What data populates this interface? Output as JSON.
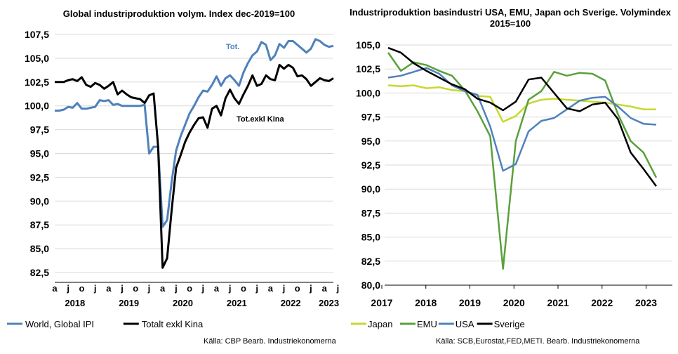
{
  "chart_data": [
    {
      "type": "line",
      "title": "Global industriproduktion volym. Index dec-2019=100",
      "ylim": [
        82.5,
        107.5
      ],
      "yticks": [
        "82,5",
        "85,0",
        "87,5",
        "90,0",
        "92,5",
        "95,0",
        "97,5",
        "100,0",
        "102,5",
        "105,0",
        "107,5"
      ],
      "month_labels": [
        "a",
        "j",
        "o",
        "j",
        "a",
        "j",
        "o",
        "j",
        "a",
        "j",
        "o",
        "j",
        "a",
        "j",
        "o",
        "j",
        "a",
        "j",
        "o",
        "j",
        "a",
        "j"
      ],
      "year_labels": [
        "2018",
        "2019",
        "2020",
        "2021",
        "2022",
        "2023"
      ],
      "grid": true,
      "legend_position": "bottom",
      "annotations": [
        "Tot.",
        "Tot.exkl Kina"
      ],
      "series": [
        {
          "name": "World, Global IPI",
          "color": "#4f81bd",
          "values": [
            99.5,
            99.5,
            99.6,
            99.9,
            99.8,
            100.3,
            99.7,
            99.7,
            99.8,
            99.9,
            100.6,
            100.5,
            100.6,
            100.1,
            100.2,
            100.0,
            100.0,
            100.0,
            100.0,
            100.0,
            100.1,
            95.0,
            95.7,
            95.7,
            87.3,
            88.0,
            92.0,
            95.3,
            96.8,
            98.0,
            99.2,
            100.0,
            100.9,
            101.6,
            101.5,
            102.2,
            103.1,
            102.1,
            102.9,
            103.2,
            102.7,
            102.1,
            103.5,
            104.5,
            105.3,
            105.7,
            106.7,
            106.4,
            104.8,
            105.3,
            106.5,
            106.1,
            106.8,
            106.8,
            106.4,
            106.0,
            105.6,
            106.0,
            107.0,
            106.8,
            106.4,
            106.2,
            106.3
          ]
        },
        {
          "name": "Totalt exkl Kina",
          "color": "#000000",
          "values": [
            102.5,
            102.5,
            102.5,
            102.7,
            102.8,
            102.6,
            103.0,
            102.2,
            102.0,
            102.4,
            102.2,
            101.8,
            102.1,
            102.5,
            101.2,
            101.6,
            101.2,
            100.9,
            100.8,
            100.7,
            100.3,
            101.1,
            101.3,
            95.7,
            83.0,
            84.0,
            89.0,
            93.5,
            94.8,
            96.2,
            97.2,
            98.0,
            98.7,
            98.8,
            97.7,
            99.7,
            100.0,
            99.0,
            100.8,
            101.7,
            100.8,
            100.2,
            101.2,
            102.1,
            103.2,
            102.1,
            102.3,
            103.2,
            102.8,
            102.7,
            104.3,
            103.9,
            104.3,
            104.0,
            103.1,
            103.2,
            102.8,
            102.1,
            102.5,
            102.9,
            102.7,
            102.6,
            102.9
          ]
        }
      ]
    },
    {
      "type": "line",
      "title": "Industriproduktion basindustri USA, EMU, Japan och Sverige. Volymindex 2015=100",
      "ylim": [
        80.0,
        105.0
      ],
      "yticks": [
        "80,0",
        "82,5",
        "85,0",
        "87,5",
        "90,0",
        "92,5",
        "95,0",
        "97,5",
        "100,0",
        "102,5",
        "105,0"
      ],
      "x_labels": [
        "2017",
        "2018",
        "2019",
        "2020",
        "2021",
        "2022",
        "2023"
      ],
      "grid": true,
      "legend_position": "bottom",
      "series": [
        {
          "name": "Japan",
          "color": "#c6d92f",
          "values": [
            100.8,
            100.7,
            100.8,
            100.5,
            100.6,
            100.3,
            100.2,
            99.7,
            99.6,
            97.0,
            97.6,
            98.9,
            99.3,
            99.4,
            99.3,
            99.2,
            99.1,
            99.0,
            98.8,
            98.6,
            98.3,
            98.3
          ]
        },
        {
          "name": "EMU",
          "color": "#5aa03c",
          "values": [
            104.2,
            102.3,
            103.2,
            102.9,
            102.3,
            101.8,
            100.3,
            98.1,
            95.5,
            81.7,
            95.0,
            99.3,
            100.2,
            102.2,
            101.8,
            102.1,
            102.0,
            101.3,
            97.8,
            95.0,
            93.8,
            91.2
          ]
        },
        {
          "name": "USA",
          "color": "#4f81bd",
          "values": [
            101.6,
            101.8,
            102.2,
            102.6,
            102.0,
            100.8,
            100.2,
            99.8,
            96.5,
            91.9,
            92.6,
            96.0,
            97.1,
            97.4,
            98.3,
            99.2,
            99.5,
            99.6,
            98.6,
            97.4,
            96.8,
            96.7
          ]
        },
        {
          "name": "Sverige",
          "color": "#000000",
          "values": [
            104.7,
            104.2,
            103.1,
            102.3,
            101.6,
            100.9,
            100.4,
            99.4,
            99.0,
            98.2,
            99.1,
            101.4,
            101.6,
            100.0,
            98.4,
            98.1,
            98.8,
            99.0,
            97.3,
            93.8,
            92.1,
            90.3
          ]
        }
      ]
    }
  ],
  "sources": {
    "left": "Källa: CBP Bearb. Industriekonomerna",
    "right": "Källa: SCB,Eurostat,FED,METI. Bearb. Industriekonomerna"
  }
}
